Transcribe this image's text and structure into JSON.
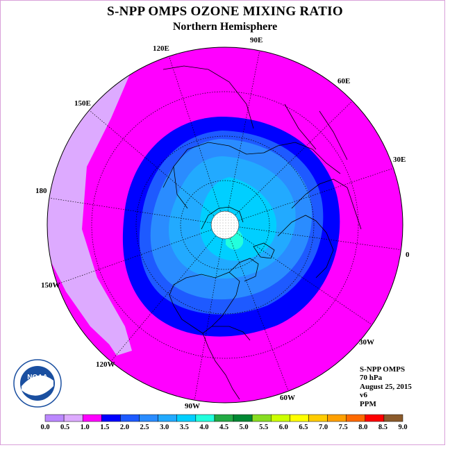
{
  "title": "S-NPP OMPS OZONE MIXING RATIO",
  "subtitle": "Northern Hemisphere",
  "longitude_labels": {
    "e90": "90E",
    "e60": "60E",
    "e30": "30E",
    "e0": "0",
    "e120": "120E",
    "e150": "150E",
    "e180": "180",
    "w150": "150W",
    "w120": "120W",
    "w90": "90W",
    "w60": "60W",
    "w30": "30W"
  },
  "info": {
    "instrument": "S-NPP OMPS",
    "level": "70 hPa",
    "date": "August 25, 2015",
    "version": "v6",
    "units": "PPM"
  },
  "logo": {
    "text": "NOAA",
    "ring_text": "NATIONAL OCEANIC AND ATMOSPHERIC ADMINISTRATION · U.S. DEPARTMENT OF COMMERCE"
  },
  "colorbar": {
    "ticks": [
      "0.0",
      "0.5",
      "1.0",
      "1.5",
      "2.0",
      "2.5",
      "3.0",
      "3.5",
      "4.0",
      "4.5",
      "5.0",
      "5.5",
      "6.0",
      "6.5",
      "7.0",
      "7.5",
      "8.0",
      "8.5",
      "9.0"
    ],
    "colors": [
      "#bb88ff",
      "#ddaaff",
      "#ff00ff",
      "#0000ff",
      "#1e5aff",
      "#2a8cff",
      "#22aaff",
      "#00cfff",
      "#22ffdd",
      "#22aa44",
      "#008833",
      "#88dd22",
      "#ccff00",
      "#ffff00",
      "#ffcc00",
      "#ffa000",
      "#ff6a00",
      "#ff0000",
      "#8b5a2b"
    ]
  }
}
